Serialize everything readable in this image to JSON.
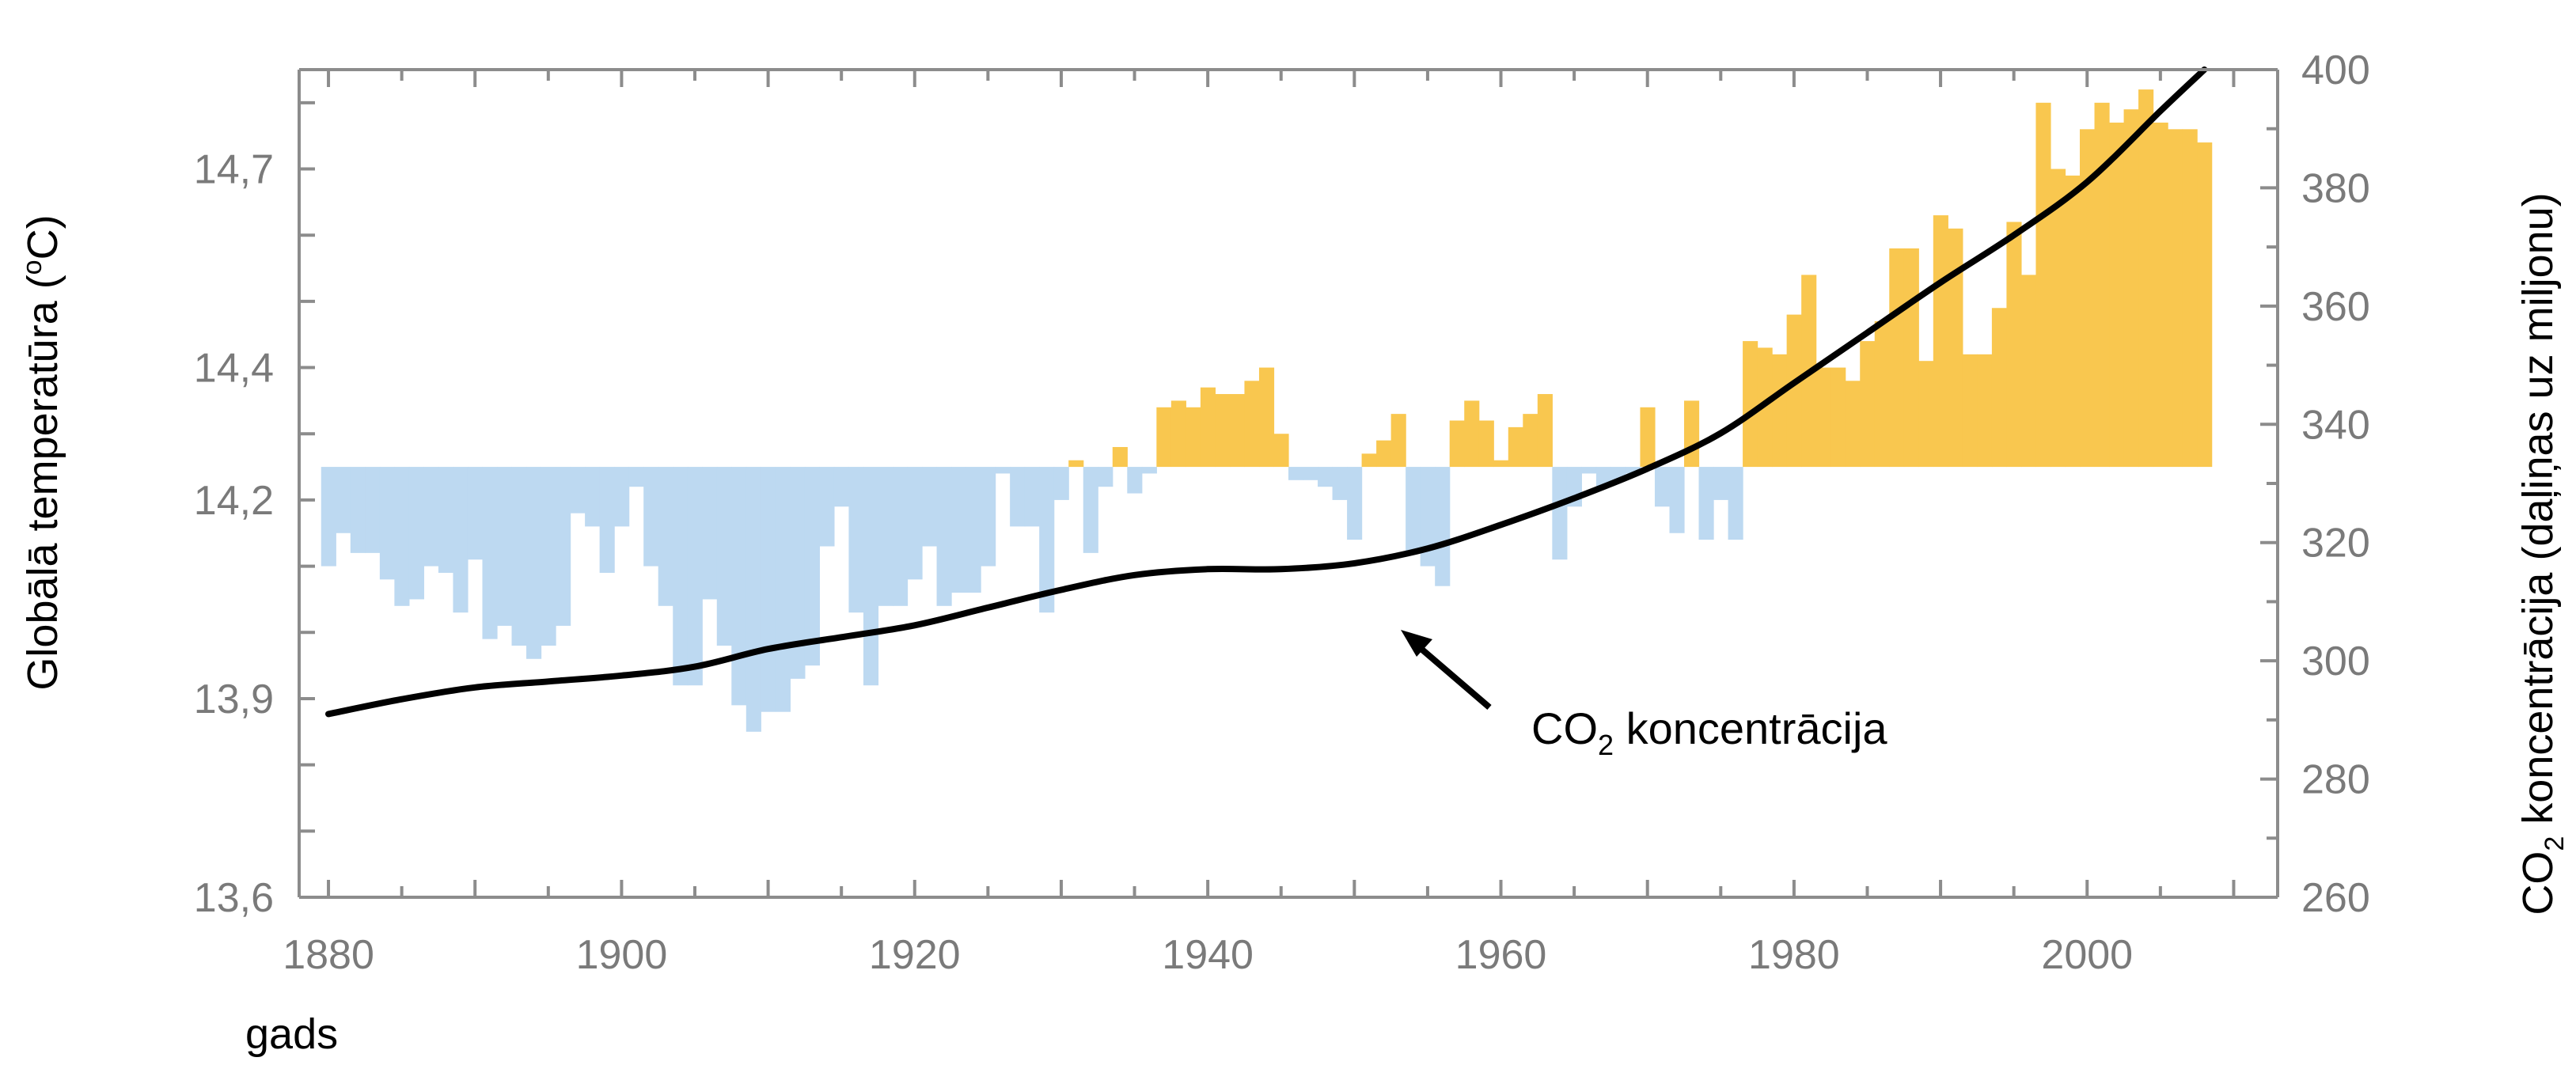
{
  "chart_data": {
    "type": "bar",
    "title": "",
    "xlabel": "gads",
    "ylabel": "Globālā temperatūra (oC)",
    "ylabel_parts": {
      "main": "Globālā temperatūra (",
      "sup": "o",
      "end": "C)"
    },
    "y2label": "CO2 koncentrācija (daļiņas uz miljonu)",
    "y2label_parts": {
      "pre": "CO",
      "sub": "2",
      "post": " koncentrācija (daļiņas uz miljonu)"
    },
    "annotation": {
      "pre": "CO",
      "sub": "2",
      "post": " koncentrācija",
      "points_to_year": 1952
    },
    "xlim": [
      1878,
      2013
    ],
    "ylim": [
      13.6,
      14.85
    ],
    "y2lim": [
      260,
      400
    ],
    "baseline": 14.25,
    "grid": false,
    "xticks": [
      1880,
      1900,
      1920,
      1940,
      1960,
      1980,
      2000
    ],
    "xtick_labels": [
      "1880",
      "1900",
      "1920",
      "1940",
      "1960",
      "1980",
      "2000"
    ],
    "yticks": [
      13.6,
      13.9,
      14.2,
      14.4,
      14.7
    ],
    "ytick_labels": [
      "13,6",
      "13,9",
      "14,2",
      "14,4",
      "14,7"
    ],
    "y2ticks": [
      260,
      280,
      300,
      320,
      340,
      360,
      380,
      400
    ],
    "y2tick_labels": [
      "260",
      "280",
      "300",
      "320",
      "340",
      "360",
      "380",
      "400"
    ],
    "colors": {
      "above": "#F9C74F",
      "below": "#BDD9F1",
      "line": "#000000",
      "axis": "#8C8C8C"
    },
    "series": [
      {
        "name": "Globālā temperatūra",
        "axis": "left",
        "x": [
          1880,
          1881,
          1882,
          1883,
          1884,
          1885,
          1886,
          1887,
          1888,
          1889,
          1890,
          1891,
          1892,
          1893,
          1894,
          1895,
          1896,
          1897,
          1898,
          1899,
          1900,
          1901,
          1902,
          1903,
          1904,
          1905,
          1906,
          1907,
          1908,
          1909,
          1910,
          1911,
          1912,
          1913,
          1914,
          1915,
          1916,
          1917,
          1918,
          1919,
          1920,
          1921,
          1922,
          1923,
          1924,
          1925,
          1926,
          1927,
          1928,
          1929,
          1930,
          1931,
          1932,
          1933,
          1934,
          1935,
          1936,
          1937,
          1938,
          1939,
          1940,
          1941,
          1942,
          1943,
          1944,
          1945,
          1946,
          1947,
          1948,
          1949,
          1950,
          1951,
          1952,
          1953,
          1954,
          1955,
          1956,
          1957,
          1958,
          1959,
          1960,
          1961,
          1962,
          1963,
          1964,
          1965,
          1966,
          1967,
          1968,
          1969,
          1970,
          1971,
          1972,
          1973,
          1974,
          1975,
          1976,
          1977,
          1978,
          1979,
          1980,
          1981,
          1982,
          1983,
          1984,
          1985,
          1986,
          1987,
          1988,
          1989,
          1990,
          1991,
          1992,
          1993,
          1994,
          1995,
          1996,
          1997,
          1998,
          1999,
          2000,
          2001,
          2002,
          2003,
          2004,
          2005,
          2006,
          2007,
          2008
        ],
        "values": [
          14.1,
          14.15,
          14.12,
          14.12,
          14.08,
          14.04,
          14.05,
          14.1,
          14.09,
          14.03,
          14.11,
          13.99,
          14.01,
          13.98,
          13.96,
          13.98,
          14.01,
          14.18,
          14.16,
          14.09,
          14.16,
          14.22,
          14.1,
          14.04,
          13.92,
          13.92,
          14.05,
          13.98,
          13.89,
          13.85,
          13.88,
          13.88,
          13.93,
          13.95,
          14.13,
          14.19,
          14.03,
          13.92,
          14.04,
          14.04,
          14.08,
          14.13,
          14.04,
          14.06,
          14.06,
          14.1,
          14.24,
          14.16,
          14.16,
          14.03,
          14.2,
          14.26,
          14.12,
          14.22,
          14.28,
          14.21,
          14.24,
          14.34,
          14.35,
          14.34,
          14.37,
          14.36,
          14.36,
          14.38,
          14.4,
          14.3,
          14.23,
          14.23,
          14.22,
          14.2,
          14.14,
          14.27,
          14.29,
          14.33,
          14.12,
          14.1,
          14.07,
          14.32,
          14.35,
          14.32,
          14.26,
          14.31,
          14.33,
          14.36,
          14.11,
          14.19,
          14.24,
          14.22,
          14.23,
          14.24,
          14.34,
          14.19,
          14.15,
          14.35,
          14.14,
          14.2,
          14.14,
          14.44,
          14.43,
          14.42,
          14.48,
          14.54,
          14.4,
          14.4,
          14.38,
          14.44,
          14.47,
          14.58,
          14.58,
          14.41,
          14.63,
          14.61,
          14.42,
          14.42,
          14.49,
          14.62,
          14.54,
          14.8,
          14.7,
          14.69,
          14.76,
          14.8,
          14.77,
          14.79,
          14.82,
          14.77,
          14.76,
          14.76,
          14.74
        ]
      },
      {
        "name": "CO2 koncentrācija",
        "axis": "right",
        "x": [
          1880,
          1885,
          1890,
          1895,
          1900,
          1905,
          1910,
          1915,
          1920,
          1925,
          1930,
          1935,
          1940,
          1945,
          1950,
          1955,
          1960,
          1965,
          1970,
          1975,
          1980,
          1985,
          1990,
          1995,
          2000,
          2005,
          2008
        ],
        "values": [
          291,
          293.5,
          295.5,
          296.5,
          297.5,
          299,
          302,
          304,
          306,
          309,
          312,
          314.5,
          315.5,
          315.5,
          316.5,
          319,
          323,
          327.5,
          332.5,
          338.5,
          347,
          355.5,
          364,
          372,
          381,
          393,
          400
        ]
      }
    ]
  }
}
